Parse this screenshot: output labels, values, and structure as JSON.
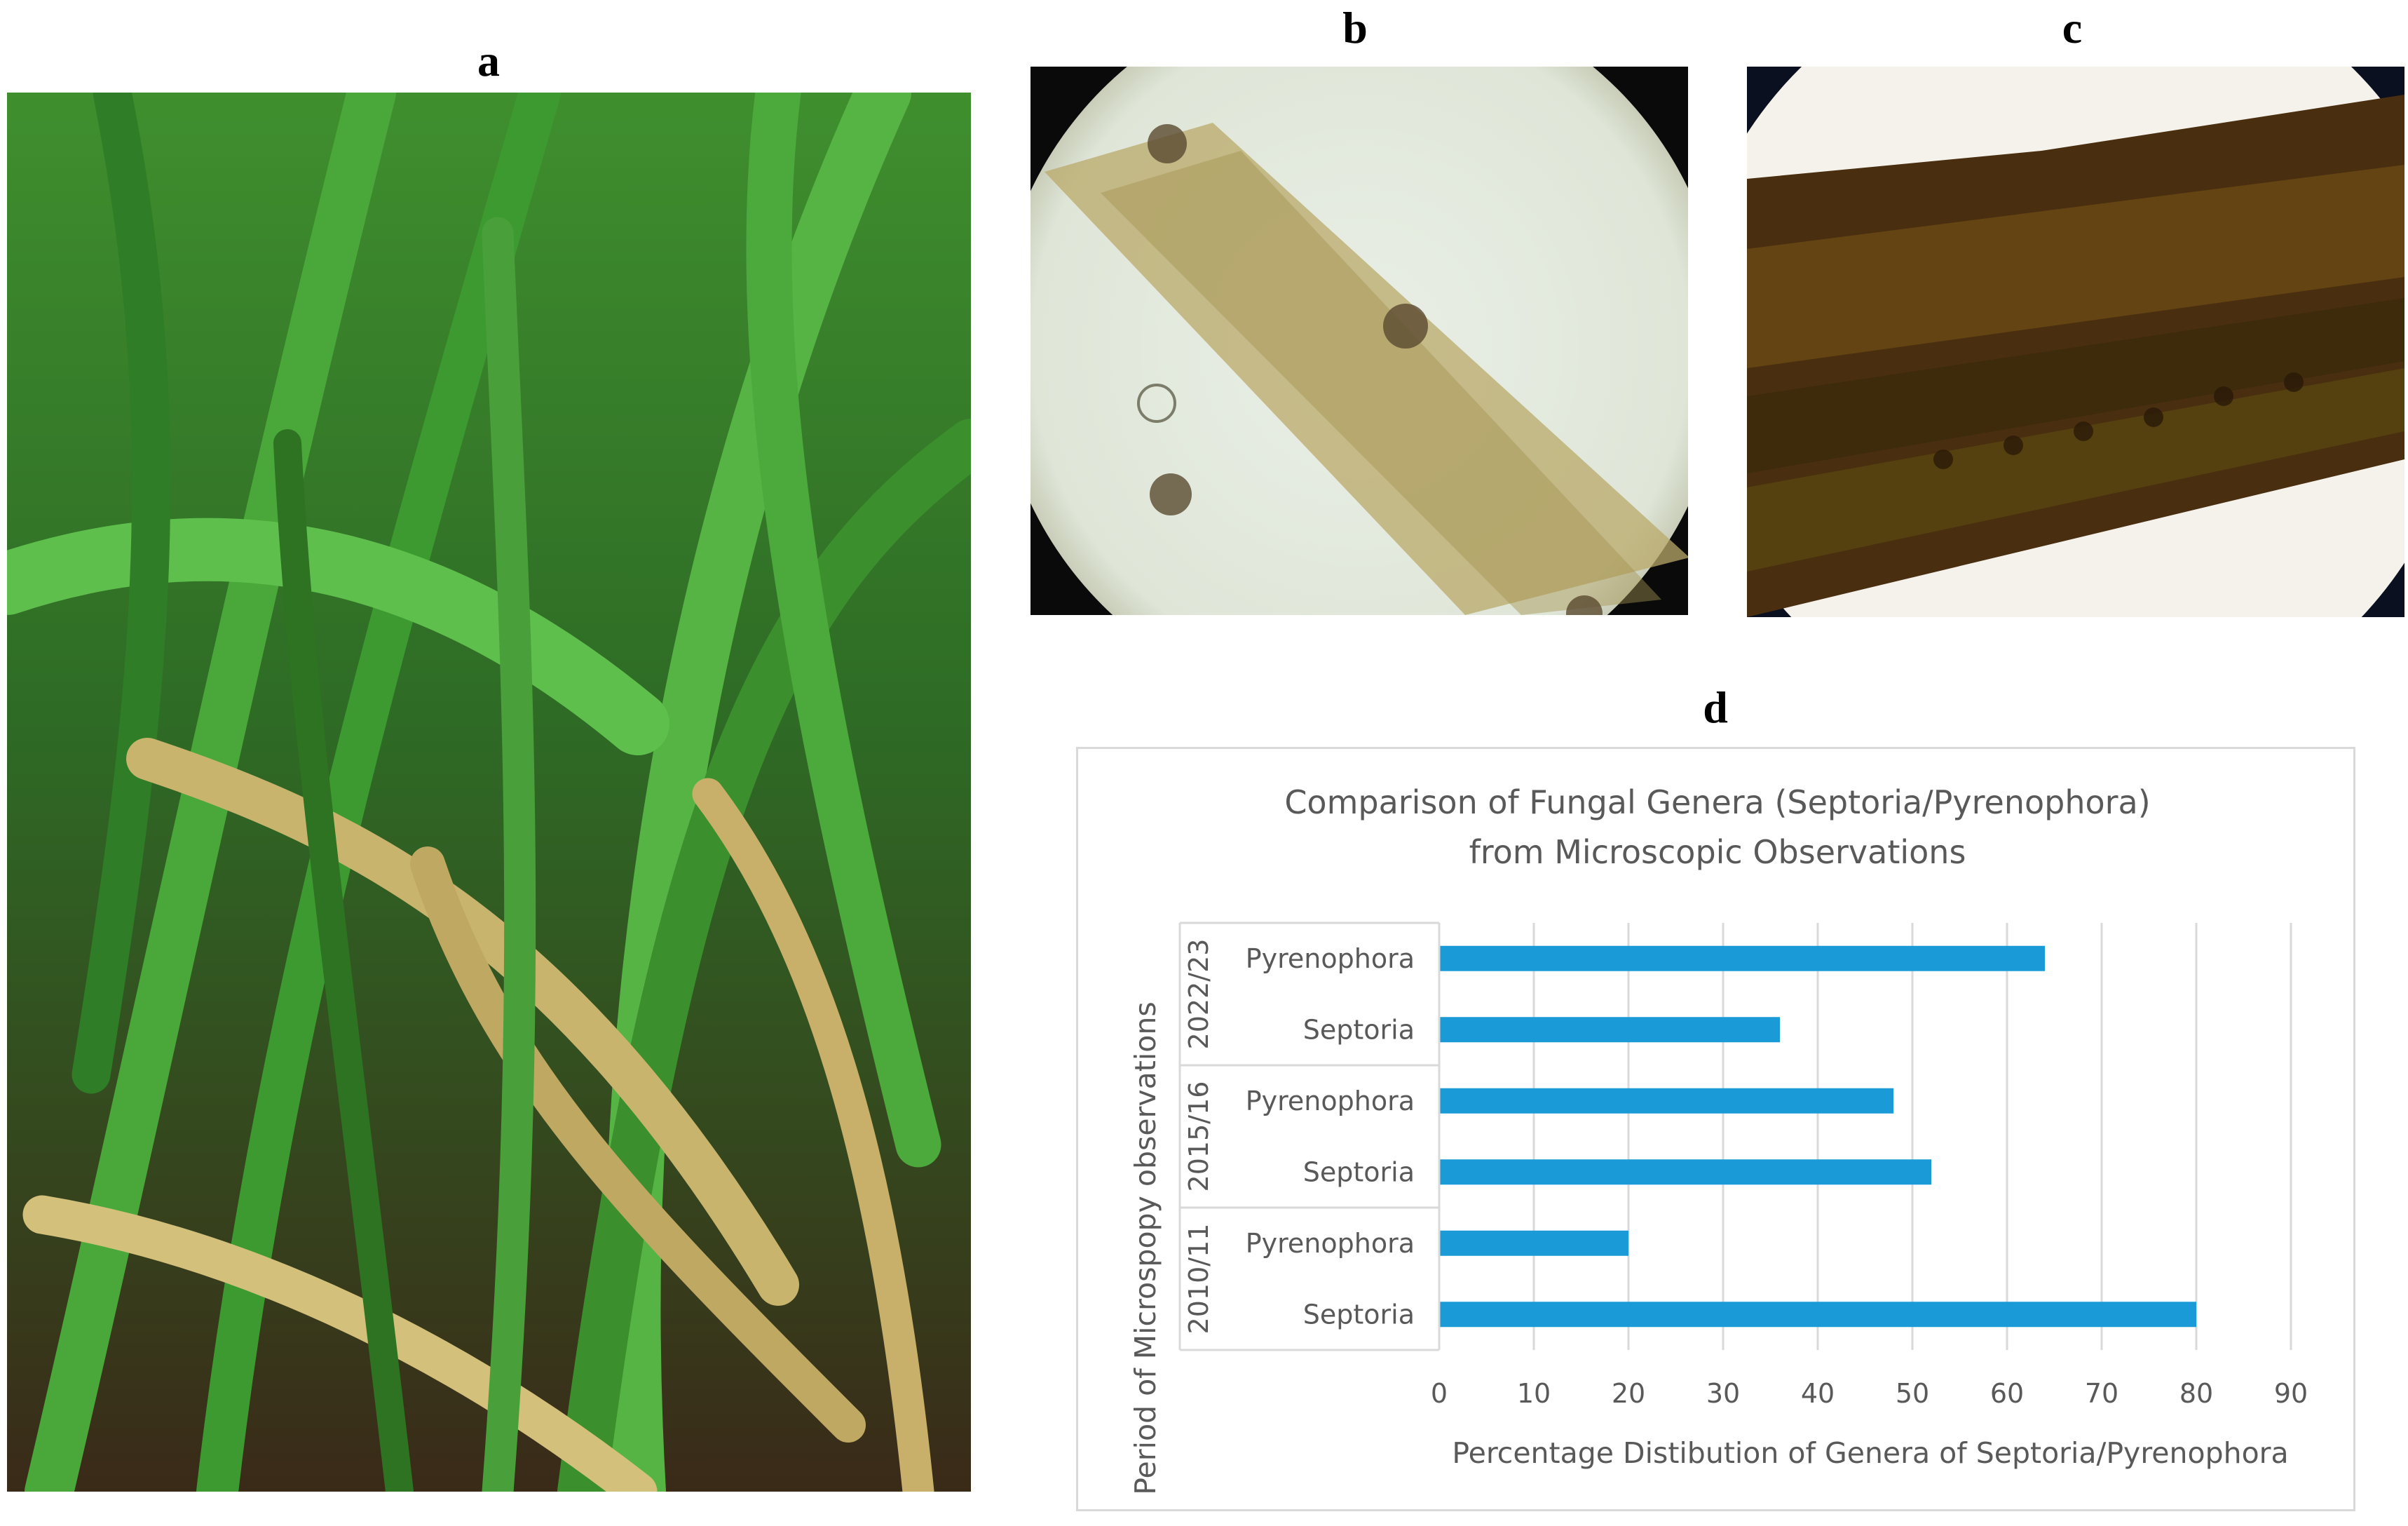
{
  "panels": {
    "a": "a",
    "b": "b",
    "c": "c",
    "d": "d"
  },
  "chart_data": {
    "type": "bar",
    "orientation": "horizontal",
    "title_lines": [
      "Comparison of Fungal Genera (Septoria/Pyrenophora)",
      "from Microscopic Observations"
    ],
    "xlabel": "Percentage Distibution of Genera of Septoria/Pyrenophora",
    "ylabel": "Period of Microspopy observations",
    "xlim": [
      0,
      90
    ],
    "xticks": [
      0,
      10,
      20,
      30,
      40,
      50,
      60,
      70,
      80,
      90
    ],
    "grid": "vertical",
    "bar_color": "#1a9bd7",
    "groups": [
      {
        "period": "2022/23",
        "bars": [
          {
            "label": "Pyrenophora",
            "value": 64
          },
          {
            "label": "Septoria",
            "value": 36
          }
        ]
      },
      {
        "period": "2015/16",
        "bars": [
          {
            "label": "Pyrenophora",
            "value": 48
          },
          {
            "label": "Septoria",
            "value": 52
          }
        ]
      },
      {
        "period": "2010/11",
        "bars": [
          {
            "label": "Pyrenophora",
            "value": 20
          },
          {
            "label": "Septoria",
            "value": 80
          }
        ]
      }
    ]
  }
}
